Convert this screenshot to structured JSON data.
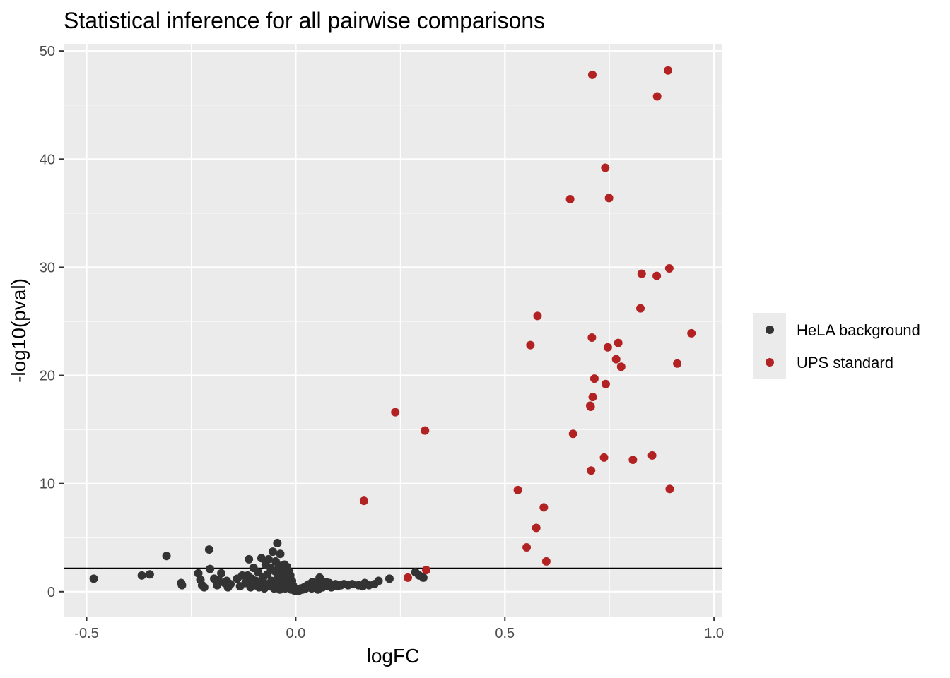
{
  "chart_data": {
    "type": "scatter",
    "title": "Statistical inference for all pairwise comparisons",
    "xlabel": "logFC",
    "ylabel": "-log10(pval)",
    "xlim": [
      -0.555,
      1.02
    ],
    "ylim": [
      -2.3,
      50.6
    ],
    "x_ticks": [
      {
        "value": -0.5,
        "label": "-0.5"
      },
      {
        "value": 0.0,
        "label": "0.0"
      },
      {
        "value": 0.5,
        "label": "0.5"
      },
      {
        "value": 1.0,
        "label": "1.0"
      }
    ],
    "y_ticks": [
      {
        "value": 0,
        "label": "0"
      },
      {
        "value": 10,
        "label": "10"
      },
      {
        "value": 20,
        "label": "20"
      },
      {
        "value": 30,
        "label": "30"
      },
      {
        "value": 40,
        "label": "40"
      },
      {
        "value": 50,
        "label": "50"
      }
    ],
    "grid": true,
    "legend_position": "right",
    "hline": 2.15,
    "colors": {
      "panel_bg": "#EBEBEB",
      "grid": "#FFFFFF",
      "hline": "#000000"
    },
    "series": [
      {
        "name": "HeLA background",
        "color": "#333333",
        "points": [
          [
            -0.483,
            1.2
          ],
          [
            -0.368,
            1.5
          ],
          [
            -0.349,
            1.6
          ],
          [
            -0.309,
            3.3
          ],
          [
            -0.274,
            0.8
          ],
          [
            -0.272,
            0.6
          ],
          [
            -0.233,
            1.7
          ],
          [
            -0.228,
            1.1
          ],
          [
            -0.224,
            0.6
          ],
          [
            -0.219,
            0.4
          ],
          [
            -0.207,
            3.9
          ],
          [
            -0.205,
            2.1
          ],
          [
            -0.195,
            1.2
          ],
          [
            -0.188,
            0.6
          ],
          [
            -0.185,
            1.1
          ],
          [
            -0.178,
            1.7
          ],
          [
            -0.17,
            0.8
          ],
          [
            -0.165,
            1.0
          ],
          [
            -0.162,
            0.4
          ],
          [
            -0.156,
            0.7
          ],
          [
            -0.14,
            1.2
          ],
          [
            -0.133,
            0.5
          ],
          [
            -0.128,
            1.5
          ],
          [
            -0.12,
            0.8
          ],
          [
            -0.115,
            1.5
          ],
          [
            -0.112,
            3.0
          ],
          [
            -0.108,
            0.4
          ],
          [
            -0.105,
            1.2
          ],
          [
            -0.101,
            2.2
          ],
          [
            -0.098,
            0.6
          ],
          [
            -0.095,
            1.0
          ],
          [
            -0.09,
            1.8
          ],
          [
            -0.088,
            0.4
          ],
          [
            -0.085,
            0.9
          ],
          [
            -0.082,
            3.1
          ],
          [
            -0.078,
            1.3
          ],
          [
            -0.075,
            0.3
          ],
          [
            -0.072,
            2.5
          ],
          [
            -0.07,
            0.7
          ],
          [
            -0.068,
            1.6
          ],
          [
            -0.065,
            3.0
          ],
          [
            -0.063,
            0.5
          ],
          [
            -0.06,
            2.2
          ],
          [
            -0.058,
            1.0
          ],
          [
            -0.055,
            3.7
          ],
          [
            -0.052,
            0.3
          ],
          [
            -0.05,
            1.9
          ],
          [
            -0.048,
            2.8
          ],
          [
            -0.046,
            0.6
          ],
          [
            -0.044,
            4.5
          ],
          [
            -0.042,
            1.4
          ],
          [
            -0.04,
            2.4
          ],
          [
            -0.038,
            0.2
          ],
          [
            -0.037,
            3.5
          ],
          [
            -0.035,
            1.1
          ],
          [
            -0.033,
            2.0
          ],
          [
            -0.031,
            0.5
          ],
          [
            -0.029,
            1.7
          ],
          [
            -0.027,
            2.5
          ],
          [
            -0.025,
            0.3
          ],
          [
            -0.023,
            1.3
          ],
          [
            -0.021,
            2.3
          ],
          [
            -0.019,
            0.8
          ],
          [
            -0.017,
            1.9
          ],
          [
            -0.015,
            0.4
          ],
          [
            -0.013,
            1.5
          ],
          [
            -0.011,
            0.2
          ],
          [
            -0.009,
            1.0
          ],
          [
            -0.007,
            0.6
          ],
          [
            -0.005,
            0.3
          ],
          [
            -0.003,
            0.1
          ],
          [
            0.0,
            0.1
          ],
          [
            0.004,
            0.2
          ],
          [
            0.008,
            0.1
          ],
          [
            0.012,
            0.3
          ],
          [
            0.016,
            0.2
          ],
          [
            0.02,
            0.4
          ],
          [
            0.024,
            0.3
          ],
          [
            0.028,
            0.6
          ],
          [
            0.03,
            0.5
          ],
          [
            0.033,
            0.7
          ],
          [
            0.035,
            0.5
          ],
          [
            0.038,
            0.3
          ],
          [
            0.04,
            0.9
          ],
          [
            0.044,
            0.4
          ],
          [
            0.047,
            0.8
          ],
          [
            0.05,
            0.5
          ],
          [
            0.053,
            0.2
          ],
          [
            0.057,
            1.3
          ],
          [
            0.06,
            0.6
          ],
          [
            0.064,
            0.4
          ],
          [
            0.068,
            0.7
          ],
          [
            0.072,
            0.9
          ],
          [
            0.076,
            0.5
          ],
          [
            0.08,
            0.8
          ],
          [
            0.085,
            0.4
          ],
          [
            0.09,
            0.6
          ],
          [
            0.095,
            0.7
          ],
          [
            0.1,
            0.5
          ],
          [
            0.108,
            0.6
          ],
          [
            0.115,
            0.7
          ],
          [
            0.125,
            0.6
          ],
          [
            0.135,
            0.7
          ],
          [
            0.15,
            0.6
          ],
          [
            0.16,
            0.5
          ],
          [
            0.165,
            0.8
          ],
          [
            0.175,
            0.6
          ],
          [
            0.188,
            0.7
          ],
          [
            0.198,
            1.0
          ],
          [
            0.224,
            1.2
          ],
          [
            0.286,
            1.8
          ],
          [
            0.295,
            1.5
          ],
          [
            0.305,
            1.3
          ]
        ]
      },
      {
        "name": "UPS standard",
        "color": "#B22222",
        "points": [
          [
            0.163,
            8.4
          ],
          [
            0.238,
            16.6
          ],
          [
            0.268,
            1.3
          ],
          [
            0.309,
            14.9
          ],
          [
            0.312,
            2.0
          ],
          [
            0.531,
            9.4
          ],
          [
            0.552,
            4.1
          ],
          [
            0.561,
            22.8
          ],
          [
            0.575,
            5.9
          ],
          [
            0.578,
            25.5
          ],
          [
            0.593,
            7.8
          ],
          [
            0.599,
            2.8
          ],
          [
            0.656,
            36.3
          ],
          [
            0.663,
            14.6
          ],
          [
            0.704,
            17.2
          ],
          [
            0.705,
            17.1
          ],
          [
            0.706,
            11.2
          ],
          [
            0.708,
            23.5
          ],
          [
            0.709,
            47.8
          ],
          [
            0.71,
            18.0
          ],
          [
            0.714,
            19.7
          ],
          [
            0.737,
            12.4
          ],
          [
            0.74,
            39.2
          ],
          [
            0.741,
            19.2
          ],
          [
            0.746,
            22.6
          ],
          [
            0.749,
            36.4
          ],
          [
            0.766,
            21.5
          ],
          [
            0.771,
            23.0
          ],
          [
            0.778,
            20.8
          ],
          [
            0.806,
            12.2
          ],
          [
            0.824,
            26.2
          ],
          [
            0.827,
            29.4
          ],
          [
            0.852,
            12.6
          ],
          [
            0.863,
            29.2
          ],
          [
            0.864,
            45.8
          ],
          [
            0.89,
            48.2
          ],
          [
            0.893,
            29.9
          ],
          [
            0.894,
            9.5
          ],
          [
            0.912,
            21.1
          ],
          [
            0.946,
            23.9
          ]
        ]
      }
    ]
  }
}
